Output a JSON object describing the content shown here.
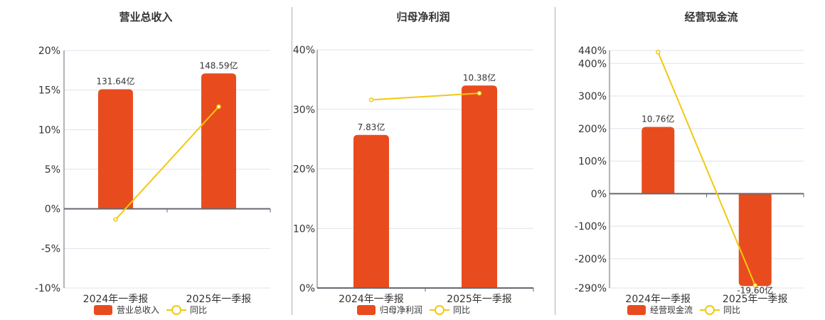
{
  "colors": {
    "bar": "#e84c1e",
    "line": "#f2c811",
    "grid": "#dde3ea",
    "axis": "#666a70",
    "text": "#333333"
  },
  "legend_line_label": "同比",
  "chart_data": [
    {
      "type": "bar+line",
      "title": "营业总收入",
      "categories": [
        "2024年一季报",
        "2025年一季报"
      ],
      "series": [
        {
          "name": "营业总收入",
          "type": "bar",
          "values": [
            15.1,
            17.1
          ],
          "labels": [
            "131.64亿",
            "148.59亿"
          ]
        },
        {
          "name": "同比",
          "type": "line",
          "values": [
            -1.35,
            12.9
          ]
        }
      ],
      "yticks": [
        "20%",
        "15%",
        "10%",
        "5%",
        "0%",
        "-5%",
        "-10%"
      ],
      "ylim": [
        -10,
        20
      ],
      "ylabel": "",
      "xlabel": "",
      "grid": true,
      "legend_position": "bottom"
    },
    {
      "type": "bar+line",
      "title": "归母净利润",
      "categories": [
        "2024年一季报",
        "2025年一季报"
      ],
      "series": [
        {
          "name": "归母净利润",
          "type": "bar",
          "values": [
            25.7,
            34.0
          ],
          "labels": [
            "7.83亿",
            "10.38亿"
          ]
        },
        {
          "name": "同比",
          "type": "line",
          "values": [
            31.6,
            32.7
          ]
        }
      ],
      "yticks": [
        "40%",
        "30%",
        "20%",
        "10%",
        "0%"
      ],
      "ylim": [
        0,
        40
      ],
      "ylabel": "",
      "xlabel": "",
      "grid": true,
      "legend_position": "bottom"
    },
    {
      "type": "bar+line",
      "title": "经营现金流",
      "categories": [
        "2024年一季报",
        "2025年一季报"
      ],
      "series": [
        {
          "name": "经营现金流",
          "type": "bar",
          "values": [
            205,
            -284
          ],
          "labels": [
            "10.76亿",
            "-19.60亿"
          ]
        },
        {
          "name": "同比",
          "type": "line",
          "values": [
            435,
            -282
          ]
        }
      ],
      "yticks": [
        "440%",
        "400%",
        "300%",
        "200%",
        "100%",
        "0%",
        "-100%",
        "-200%",
        "-290%"
      ],
      "ylim": [
        -290,
        440
      ],
      "ylabel": "",
      "xlabel": "",
      "grid": true,
      "legend_position": "bottom"
    }
  ]
}
